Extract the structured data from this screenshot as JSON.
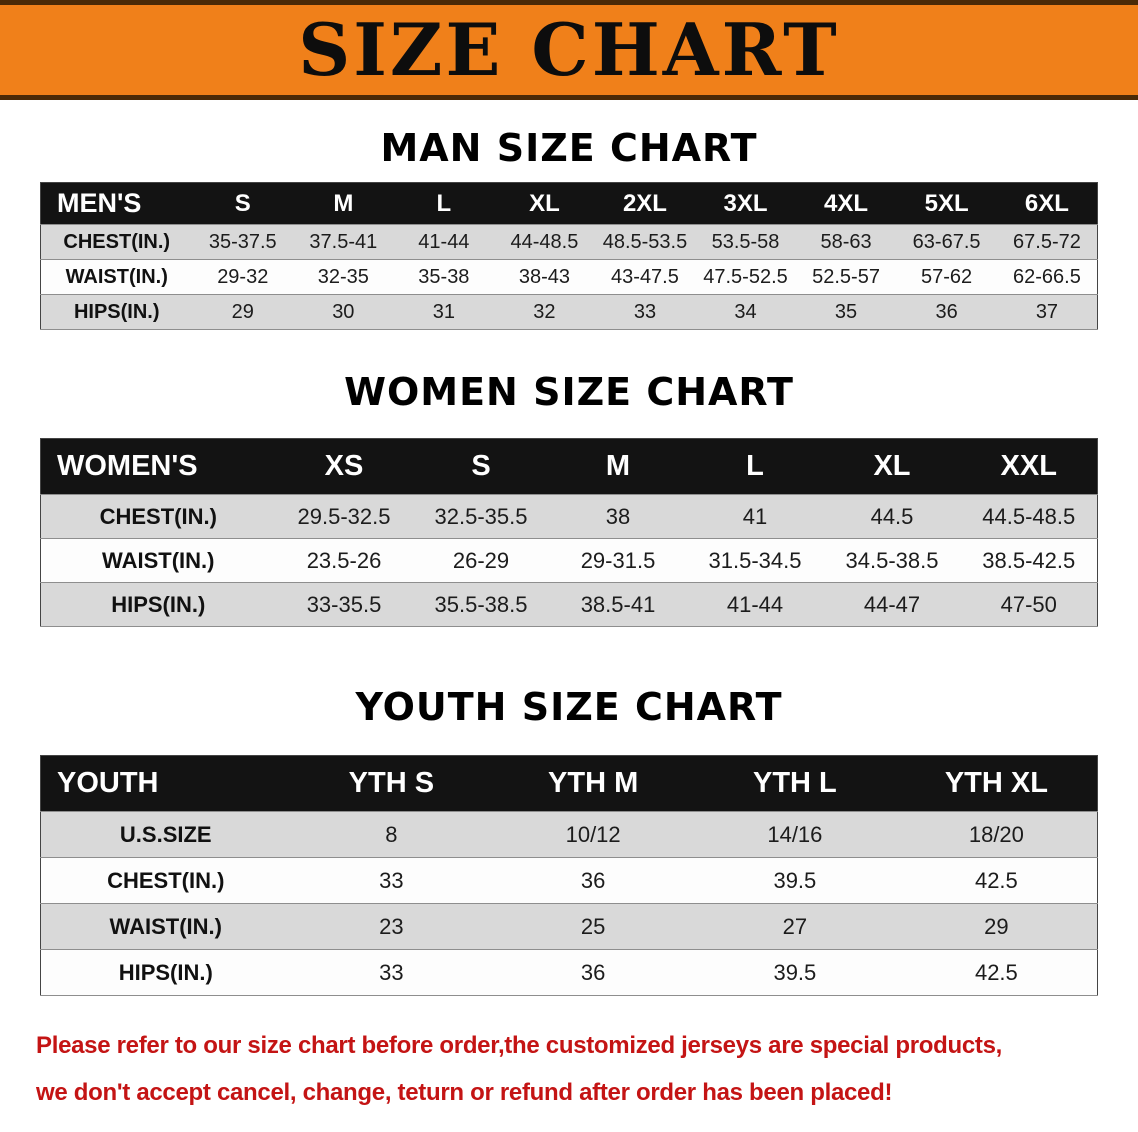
{
  "banner": {
    "title": "SIZE CHART",
    "bg_color": "#F0801A"
  },
  "chart_data": [
    {
      "type": "table",
      "title": "MAN SIZE CHART",
      "columns": [
        "MEN'S",
        "S",
        "M",
        "L",
        "XL",
        "2XL",
        "3XL",
        "4XL",
        "5XL",
        "6XL"
      ],
      "rows": [
        [
          "CHEST(IN.)",
          "35-37.5",
          "37.5-41",
          "41-44",
          "44-48.5",
          "48.5-53.5",
          "53.5-58",
          "58-63",
          "63-67.5",
          "67.5-72"
        ],
        [
          "WAIST(IN.)",
          "29-32",
          "32-35",
          "35-38",
          "38-43",
          "43-47.5",
          "47.5-52.5",
          "52.5-57",
          "57-62",
          "62-66.5"
        ],
        [
          "HIPS(IN.)",
          "29",
          "30",
          "31",
          "32",
          "33",
          "34",
          "35",
          "36",
          "37"
        ]
      ]
    },
    {
      "type": "table",
      "title": "WOMEN SIZE CHART",
      "columns": [
        "WOMEN'S",
        "XS",
        "S",
        "M",
        "L",
        "XL",
        "XXL"
      ],
      "rows": [
        [
          "CHEST(IN.)",
          "29.5-32.5",
          "32.5-35.5",
          "38",
          "41",
          "44.5",
          "44.5-48.5"
        ],
        [
          "WAIST(IN.)",
          "23.5-26",
          "26-29",
          "29-31.5",
          "31.5-34.5",
          "34.5-38.5",
          "38.5-42.5"
        ],
        [
          "HIPS(IN.)",
          "33-35.5",
          "35.5-38.5",
          "38.5-41",
          "41-44",
          "44-47",
          "47-50"
        ]
      ]
    },
    {
      "type": "table",
      "title": "YOUTH SIZE CHART",
      "columns": [
        "YOUTH",
        "YTH S",
        "YTH M",
        "YTH L",
        "YTH XL"
      ],
      "rows": [
        [
          "U.S.SIZE",
          "8",
          "10/12",
          "14/16",
          "18/20"
        ],
        [
          "CHEST(IN.)",
          "33",
          "36",
          "39.5",
          "42.5"
        ],
        [
          "WAIST(IN.)",
          "23",
          "25",
          "27",
          "29"
        ],
        [
          "HIPS(IN.)",
          "33",
          "36",
          "39.5",
          "42.5"
        ]
      ]
    }
  ],
  "footer": {
    "line1": "Please refer to our size chart before order,the customized jerseys are special products,",
    "line2": "we don't accept cancel, change, teturn or refund after order has been placed!",
    "text_color": "#c41414"
  }
}
